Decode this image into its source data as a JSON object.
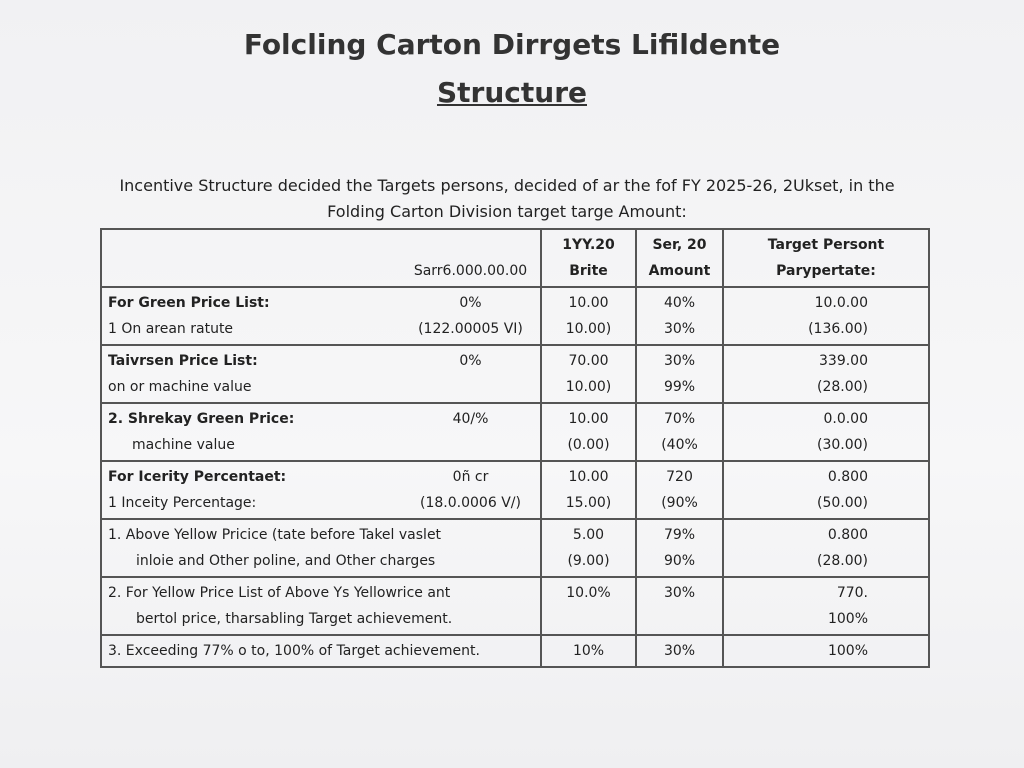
{
  "header": {
    "title": "Folcling Carton Dirrgets Lifildente",
    "subtitle": "Structure"
  },
  "intro": {
    "line1": "Incentive Structure decided the Targets persons, decided of ar the fof FY 2025-26, 2Ukset, in the",
    "line2": "Folding Carton Division target targe Amount:"
  },
  "table": {
    "header_rows": [
      {
        "c2": "1YY.20",
        "c3": "Ser, 20",
        "c4": "Target Persont"
      },
      {
        "amount": "Sarr6.000.00.00",
        "c2": "Brite",
        "c3": "Amount",
        "c4": "Parypertate:"
      }
    ],
    "rows": [
      {
        "lines": [
          {
            "label": "For Green Price List:",
            "amount": "0%",
            "c2": "10.00",
            "c3": "40%",
            "c4": "10.0.00"
          },
          {
            "label": "1   On arean ratute",
            "amount": "(122.00005 VI)",
            "c2": "10.00)",
            "c3": "30%",
            "c4": "(136.00)"
          }
        ]
      },
      {
        "lines": [
          {
            "label": "Taivrsen Price List:",
            "amount": "0%",
            "c2": "70.00",
            "c3": "30%",
            "c4": "339.00"
          },
          {
            "label": "on or machine value",
            "c2": "10.00)",
            "c3": "99%",
            "c4": "(28.00)"
          }
        ]
      },
      {
        "lines": [
          {
            "label": "2. Shrekay Green Price:",
            "amount": "40/%",
            "c2": "10.00",
            "c3": "70%",
            "c4": "0.0.00"
          },
          {
            "label": "machine value",
            "c2": "(0.00)",
            "c3": "(40%",
            "c4": "(30.00)"
          }
        ]
      },
      {
        "lines": [
          {
            "label": "For Icerity Percentaet:",
            "amount": "0ñ cr",
            "c2": "10.00",
            "c3": "720",
            "c4": "0.800"
          },
          {
            "label": "1   Inceity Percentage:",
            "amount": "(18.0.0006 V/)",
            "c2": "15.00)",
            "c3": "(90%",
            "c4": "(50.00)"
          }
        ]
      },
      {
        "lines": [
          {
            "label": "1.   Above Yellow Pricice (tate before Takel vaslet",
            "c2": "5.00",
            "c3": "79%",
            "c4": "0.800"
          },
          {
            "label": "inloie and Other poline, and Other charges",
            "c2": "(9.00)",
            "c3": "90%",
            "c4": "(28.00)"
          }
        ]
      },
      {
        "lines": [
          {
            "label": "2.   For Yellow Price List of Above Ys Yellowrice ant",
            "c2": "10.0%",
            "c3": "30%",
            "c4": "770."
          },
          {
            "label": "bertol price, tharsabling Target achievement.",
            "c4": "100%"
          }
        ]
      },
      {
        "lines": [
          {
            "label": "3.   Exceeding 77% o to, 100% of Target achievement.",
            "c2": "10%",
            "c3": "30%",
            "c4": "100%"
          }
        ]
      }
    ]
  }
}
